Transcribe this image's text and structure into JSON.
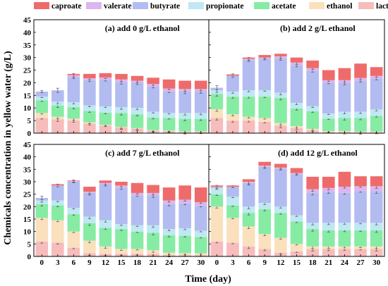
{
  "chart_data": {
    "type": "bar",
    "stacked": true,
    "ylabel": "Chemicals concentration in yellow water (g/L)",
    "xlabel": "Time (day)",
    "legend_position": "top",
    "colors": {
      "lactate": "#f7bcbc",
      "ethanol": "#fae0bd",
      "acetate": "#86eca4",
      "propionate": "#bfe8f4",
      "butyrate": "#b3bcf0",
      "valerate": "#ddb6ee",
      "caproate": "#ef6b6b"
    },
    "legend": [
      {
        "key": "caproate",
        "label": "caproate"
      },
      {
        "key": "valerate",
        "label": "valerate"
      },
      {
        "key": "butyrate",
        "label": "butyrate"
      },
      {
        "key": "propionate",
        "label": "propionate"
      },
      {
        "key": "acetate",
        "label": "acetate"
      },
      {
        "key": "ethanol",
        "label": "ethanol"
      },
      {
        "key": "lactate",
        "label": "lactate"
      }
    ],
    "stack_order": [
      "lactate",
      "ethanol",
      "acetate",
      "propionate",
      "butyrate",
      "valerate",
      "caproate"
    ],
    "x": [
      0,
      3,
      6,
      9,
      12,
      15,
      18,
      21,
      24,
      27,
      30
    ],
    "panels": [
      {
        "title": "(a) add 0 g/L ethanol",
        "ylim": [
          0,
          45
        ],
        "yticks": [
          0,
          5,
          10,
          15,
          20,
          25,
          30,
          35,
          40,
          45
        ],
        "totals": [
          16.5,
          17,
          23.5,
          23.5,
          23.8,
          23.5,
          22.7,
          22,
          21.3,
          20.8,
          20.8
        ],
        "series": {
          "lactate": [
            6,
            5.5,
            5,
            3.8,
            3,
            2.3,
            1.8,
            1,
            0.8,
            0.5,
            0.5
          ],
          "ethanol": [
            2,
            1,
            0.8,
            0.5,
            0.3,
            0.2,
            0.2,
            0.2,
            0.2,
            0.2,
            0.2
          ],
          "acetate": [
            5,
            4.5,
            4.5,
            4.5,
            4.8,
            5.5,
            5.5,
            5,
            5,
            5,
            5
          ],
          "propionate": [
            1.5,
            1.5,
            2,
            2.2,
            2.5,
            2.3,
            2.5,
            2.3,
            2,
            2.3,
            2.3
          ],
          "butyrate": [
            2,
            4.5,
            10,
            10,
            10.5,
            10,
            10,
            10,
            8.5,
            8.5,
            8.5
          ],
          "valerate": [
            0,
            0,
            0.7,
            0.8,
            1,
            1,
            0.8,
            1,
            1.2,
            1,
            1
          ],
          "caproate": [
            0,
            0,
            0.5,
            1.7,
            1.7,
            2.2,
            1.9,
            2.5,
            3.6,
            3.3,
            3.3
          ]
        }
      },
      {
        "title": "(b) add 2 g/L ethanol",
        "ylim": [
          0,
          45
        ],
        "yticks": [
          0,
          5,
          10,
          15,
          20,
          25,
          30,
          35,
          40,
          45
        ],
        "totals": [
          18,
          23.3,
          30,
          31,
          31.5,
          30,
          28.8,
          25,
          25.8,
          27.6,
          26.2
        ],
        "series": {
          "lactate": [
            6,
            5,
            5,
            4.5,
            3,
            2,
            1.2,
            0.5,
            0.5,
            0.3,
            0.3
          ],
          "ethanol": [
            3.5,
            2.5,
            1.5,
            1.5,
            1,
            0.8,
            0.5,
            0.3,
            0.3,
            0.3,
            0.3
          ],
          "acetate": [
            6,
            7,
            8,
            8.5,
            10,
            7,
            7,
            5,
            5.2,
            5.4,
            6.3
          ],
          "propionate": [
            1.5,
            2,
            2.5,
            2.5,
            2,
            2.2,
            2,
            2,
            2.5,
            2.5,
            2.5
          ],
          "butyrate": [
            1,
            6.3,
            12,
            12.5,
            13.7,
            15,
            14.1,
            12.2,
            11.5,
            12.4,
            12.3
          ],
          "valerate": [
            0,
            0,
            0.5,
            0.5,
            0.8,
            1,
            1,
            1,
            1,
            1,
            1
          ],
          "caproate": [
            0,
            0.5,
            0.5,
            1,
            1,
            2,
            3,
            4,
            4.8,
            5.7,
            3.5
          ]
        }
      },
      {
        "title": "(c) add 7 g/L ethanol",
        "ylim": [
          0,
          45
        ],
        "yticks": [
          0,
          5,
          10,
          15,
          20,
          25,
          30,
          35,
          40,
          45
        ],
        "totals": [
          23.5,
          29,
          30.5,
          28,
          30.5,
          30,
          29.5,
          28.7,
          27.7,
          28.5,
          27.7
        ],
        "series": {
          "lactate": [
            6,
            5.5,
            3.5,
            1.3,
            1,
            1,
            1,
            1,
            0.5,
            0.5,
            0.5
          ],
          "ethanol": [
            9.5,
            9,
            6.5,
            5,
            3,
            2,
            2,
            1.5,
            1,
            0.8,
            0.8
          ],
          "acetate": [
            5.5,
            6,
            7,
            7,
            7.5,
            8,
            7,
            7,
            7,
            7,
            6.5
          ],
          "propionate": [
            1.5,
            2,
            2.5,
            2.7,
            3,
            2,
            2.5,
            3,
            2.5,
            3,
            2.5
          ],
          "butyrate": [
            1,
            6,
            10.5,
            9.5,
            14.5,
            14.5,
            12,
            12,
            10,
            10,
            10
          ],
          "valerate": [
            0,
            0,
            0.3,
            0.5,
            0.5,
            1,
            1,
            1,
            1.5,
            1.5,
            1.5
          ],
          "caproate": [
            0,
            0.5,
            0.2,
            2,
            1,
            1.5,
            4,
            3.2,
            5.2,
            5.7,
            5.9
          ]
        }
      },
      {
        "title": "(d) add 12 g/L ethanol",
        "ylim": [
          0,
          45
        ],
        "yticks": [
          0,
          5,
          10,
          15,
          20,
          25,
          30,
          35,
          40,
          45
        ],
        "totals": [
          28.5,
          28.5,
          31,
          38,
          37.2,
          35.5,
          32,
          32,
          34,
          32.2,
          32.2
        ],
        "series": {
          "lactate": [
            6,
            5.5,
            4,
            3,
            1.5,
            2,
            3,
            3,
            3,
            3,
            3
          ],
          "ethanol": [
            14,
            10,
            8,
            6,
            6,
            3,
            1,
            1,
            1,
            1,
            1
          ],
          "acetate": [
            5,
            5,
            5.5,
            10,
            10,
            9,
            7,
            6.5,
            6.5,
            6.5,
            6.5
          ],
          "propionate": [
            2.5,
            3.5,
            2.5,
            2.5,
            2.5,
            2.5,
            2.5,
            3,
            3,
            3,
            3
          ],
          "butyrate": [
            0.5,
            4,
            9.5,
            14.5,
            15.2,
            16.5,
            12,
            12.5,
            12,
            12.7,
            12.7
          ],
          "valerate": [
            0,
            0,
            0.5,
            0.5,
            0.5,
            0.5,
            1.5,
            1.5,
            2.5,
            2,
            2
          ],
          "caproate": [
            0.5,
            0.5,
            1,
            1.5,
            1.5,
            2,
            5,
            4.5,
            6,
            4,
            4
          ]
        }
      }
    ]
  }
}
